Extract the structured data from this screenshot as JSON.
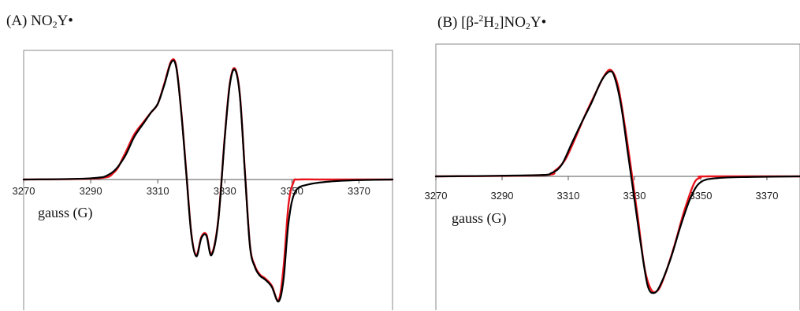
{
  "panels": [
    {
      "id": "A",
      "label_prefix": "(A) NO",
      "label_sub": "2",
      "label_suffix": "Y•"
    },
    {
      "id": "B",
      "label_prefix": "(B) [β-",
      "label_sup": "2",
      "label_mid": "H",
      "label_sub": "2",
      "label_suffix": "]NO",
      "label_sub2": "2",
      "label_suffix2": "Y•"
    }
  ],
  "colors": {
    "experimental": "#000000",
    "simulation": "#e8141c",
    "axis": "#555555",
    "frame": "#888888"
  },
  "chart_data": [
    {
      "type": "line",
      "panel": "A",
      "title": "(A) NO2Y•",
      "xlabel": "gauss (G)",
      "ylabel": "",
      "xlim": [
        3270,
        3380
      ],
      "ylim": [
        -1.0,
        1.0
      ],
      "xticks": [
        3270,
        3290,
        3310,
        3330,
        3350,
        3370
      ],
      "yaxis_visible": false,
      "grid": false,
      "series": [
        {
          "role": "experimental",
          "color": "#000000",
          "x": [
            3270,
            3290,
            3296,
            3300,
            3303,
            3306,
            3308,
            3310,
            3312,
            3314,
            3315.5,
            3317,
            3318.5,
            3320,
            3321.5,
            3323,
            3324.5,
            3326,
            3328,
            3330,
            3331.5,
            3333,
            3334.5,
            3336,
            3337.5,
            3339,
            3340.5,
            3342,
            3344,
            3346,
            3347.5,
            3349,
            3351,
            3355,
            3362,
            3370,
            3380
          ],
          "y": [
            0,
            0.01,
            0.05,
            0.18,
            0.35,
            0.47,
            0.55,
            0.62,
            0.78,
            0.96,
            0.92,
            0.55,
            0.05,
            -0.45,
            -0.63,
            -0.48,
            -0.46,
            -0.62,
            -0.35,
            0.35,
            0.78,
            0.9,
            0.68,
            0.05,
            -0.55,
            -0.72,
            -0.79,
            -0.82,
            -0.88,
            -1.0,
            -0.82,
            -0.35,
            -0.1,
            -0.04,
            -0.015,
            -0.005,
            0
          ]
        },
        {
          "role": "simulation",
          "color": "#e8141c",
          "x": [
            3270,
            3292,
            3297,
            3300,
            3303,
            3306,
            3308,
            3310,
            3312,
            3314,
            3315.5,
            3317,
            3318.5,
            3320,
            3321.5,
            3323,
            3324.5,
            3326,
            3328,
            3330,
            3331.5,
            3333,
            3334.5,
            3336,
            3337.5,
            3339,
            3340.5,
            3342,
            3344,
            3346,
            3347.5,
            3349,
            3350.5,
            3352,
            3360,
            3380
          ],
          "y": [
            0,
            0.01,
            0.06,
            0.2,
            0.37,
            0.48,
            0.55,
            0.62,
            0.79,
            0.97,
            0.93,
            0.56,
            0.06,
            -0.44,
            -0.62,
            -0.47,
            -0.45,
            -0.61,
            -0.34,
            0.36,
            0.79,
            0.91,
            0.69,
            0.06,
            -0.54,
            -0.71,
            -0.78,
            -0.81,
            -0.87,
            -0.99,
            -0.72,
            -0.2,
            -0.02,
            0,
            0,
            0
          ]
        }
      ]
    },
    {
      "type": "line",
      "panel": "B",
      "title": "(B) [β-2H2]NO2Y•",
      "xlabel": "gauss (G)",
      "ylabel": "",
      "xlim": [
        3270,
        3380
      ],
      "ylim": [
        -1.0,
        1.0
      ],
      "xticks": [
        3270,
        3290,
        3310,
        3330,
        3350,
        3370
      ],
      "yaxis_visible": false,
      "grid": false,
      "series": [
        {
          "role": "experimental",
          "color": "#000000",
          "x": [
            3270,
            3300,
            3305,
            3308,
            3311,
            3314,
            3317,
            3320,
            3322.5,
            3324,
            3326,
            3328,
            3330,
            3332,
            3334,
            3336,
            3338,
            3341,
            3344,
            3347,
            3350,
            3355,
            3365,
            3380
          ],
          "y": [
            0,
            0.01,
            0.03,
            0.1,
            0.28,
            0.46,
            0.63,
            0.82,
            0.9,
            0.85,
            0.6,
            0.2,
            -0.2,
            -0.6,
            -0.94,
            -1.0,
            -0.92,
            -0.7,
            -0.42,
            -0.18,
            -0.05,
            -0.015,
            -0.005,
            0
          ]
        },
        {
          "role": "simulation",
          "color": "#e8141c",
          "x": [
            3270,
            3302,
            3306,
            3309,
            3312,
            3315,
            3318,
            3321,
            3323,
            3325,
            3327,
            3329,
            3331,
            3333,
            3335,
            3337,
            3339,
            3342,
            3345,
            3348,
            3350,
            3352,
            3380
          ],
          "y": [
            0,
            0.01,
            0.05,
            0.14,
            0.32,
            0.52,
            0.7,
            0.87,
            0.91,
            0.78,
            0.45,
            0.06,
            -0.35,
            -0.78,
            -0.97,
            -0.98,
            -0.86,
            -0.6,
            -0.3,
            -0.06,
            -0.01,
            0,
            0
          ]
        }
      ]
    }
  ]
}
